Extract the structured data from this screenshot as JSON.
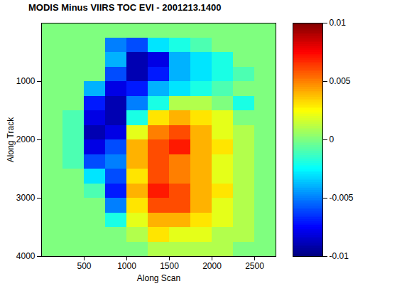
{
  "chart_data": {
    "type": "heatmap",
    "title": "MODIS Minus VIIRS TOC EVI - 2001213.1400",
    "xlabel": "Along Scan",
    "ylabel": "Along Track",
    "x": [
      125,
      375,
      625,
      875,
      1125,
      1375,
      1625,
      1875,
      2125,
      2375,
      2625
    ],
    "y": [
      125,
      375,
      625,
      875,
      1125,
      1375,
      1625,
      1875,
      2125,
      2375,
      2625,
      2875,
      3125,
      3375,
      3625,
      3875
    ],
    "values": [
      [
        0,
        0,
        0,
        0,
        0,
        0,
        0,
        0,
        0,
        0,
        0
      ],
      [
        0,
        0,
        0,
        -0.005,
        -0.006,
        -0.003,
        -0.002,
        -0.001,
        0,
        0,
        0
      ],
      [
        0,
        0,
        0,
        -0.004,
        -0.009,
        -0.008,
        -0.004,
        -0.003,
        -0.002,
        0,
        0
      ],
      [
        0,
        0,
        0,
        -0.006,
        -0.009,
        -0.007,
        -0.004,
        -0.003,
        -0.002,
        -0.001,
        0
      ],
      [
        0,
        0,
        -0.004,
        -0.008,
        -0.007,
        -0.004,
        -0.003,
        -0.002,
        -0.001,
        0,
        0
      ],
      [
        0,
        0,
        -0.007,
        -0.009,
        -0.005,
        -0.002,
        0.001,
        0.001,
        0,
        -0.002,
        0
      ],
      [
        0,
        -0.001,
        -0.008,
        -0.009,
        -0.002,
        0.003,
        0.004,
        0.003,
        0.002,
        0,
        0
      ],
      [
        0,
        -0.001,
        -0.009,
        -0.008,
        0.002,
        0.005,
        0.006,
        0.004,
        0.002,
        0.001,
        0
      ],
      [
        0,
        -0.001,
        -0.008,
        -0.006,
        0.004,
        0.006,
        0.007,
        0.004,
        0.003,
        0.001,
        0
      ],
      [
        0,
        -0.001,
        -0.006,
        -0.005,
        0.004,
        0.006,
        0.005,
        0.004,
        0.002,
        0.001,
        0
      ],
      [
        0,
        0,
        -0.003,
        -0.006,
        0.003,
        0.006,
        0.005,
        0.004,
        0.002,
        0.001,
        0
      ],
      [
        0,
        0,
        -0.001,
        -0.007,
        0.004,
        0.007,
        0.006,
        0.004,
        0.003,
        0.001,
        0
      ],
      [
        0,
        0,
        0,
        -0.005,
        0.003,
        0.006,
        0.006,
        0.004,
        0.002,
        0.001,
        0
      ],
      [
        0,
        0,
        0,
        -0.002,
        0.002,
        0.004,
        0.004,
        0.003,
        0.002,
        0.001,
        0
      ],
      [
        0,
        0,
        0,
        0,
        0.001,
        0.003,
        0.002,
        0.002,
        0.001,
        0.001,
        0
      ],
      [
        0,
        0,
        0,
        0,
        0,
        0.001,
        0.001,
        0.001,
        0.001,
        0,
        0
      ]
    ],
    "xlim": [
      0,
      2750
    ],
    "ylim": [
      0,
      4000
    ],
    "xticks": [
      500,
      1000,
      1500,
      2000,
      2500
    ],
    "yticks": [
      1000,
      2000,
      3000,
      4000
    ],
    "color_range": [
      -0.01,
      0.01
    ],
    "color_ticks": [
      0.01,
      0.005,
      0,
      -0.005,
      -0.01
    ]
  }
}
